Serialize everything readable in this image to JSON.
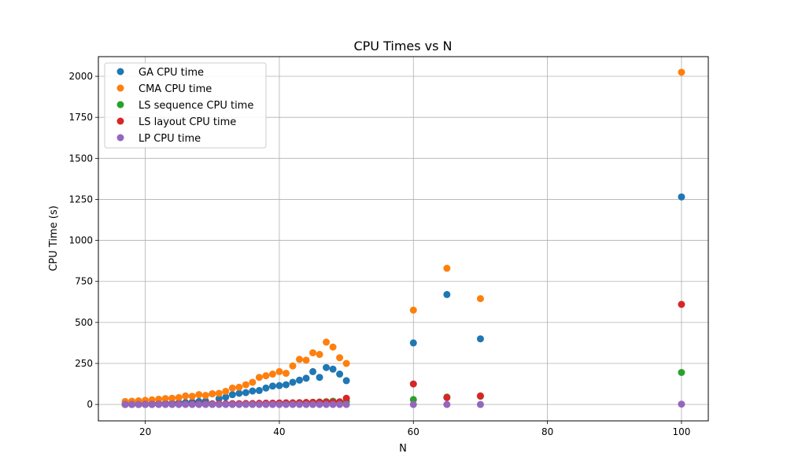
{
  "chart_data": {
    "type": "scatter",
    "title": "CPU Times vs N",
    "xlabel": "N",
    "ylabel": "CPU Time (s)",
    "xlim": [
      13,
      104
    ],
    "ylim": [
      -100,
      2120
    ],
    "xticks": [
      20,
      40,
      60,
      80,
      100
    ],
    "yticks": [
      0,
      250,
      500,
      750,
      1000,
      1250,
      1500,
      1750,
      2000
    ],
    "grid": true,
    "legend_position": "top-left",
    "series": [
      {
        "name": "GA CPU time",
        "color": "#1f77b4",
        "points": [
          [
            17,
            2
          ],
          [
            18,
            3
          ],
          [
            19,
            3
          ],
          [
            20,
            4
          ],
          [
            21,
            5
          ],
          [
            22,
            6
          ],
          [
            23,
            7
          ],
          [
            24,
            8
          ],
          [
            25,
            10
          ],
          [
            26,
            12
          ],
          [
            27,
            15
          ],
          [
            28,
            18
          ],
          [
            29,
            20
          ],
          [
            30,
            65
          ],
          [
            31,
            35
          ],
          [
            32,
            45
          ],
          [
            33,
            60
          ],
          [
            34,
            68
          ],
          [
            35,
            72
          ],
          [
            36,
            82
          ],
          [
            37,
            85
          ],
          [
            38,
            100
          ],
          [
            39,
            112
          ],
          [
            40,
            115
          ],
          [
            41,
            120
          ],
          [
            42,
            135
          ],
          [
            43,
            148
          ],
          [
            44,
            160
          ],
          [
            45,
            200
          ],
          [
            46,
            165
          ],
          [
            47,
            225
          ],
          [
            48,
            215
          ],
          [
            49,
            185
          ],
          [
            50,
            145
          ],
          [
            60,
            375
          ],
          [
            65,
            670
          ],
          [
            70,
            400
          ],
          [
            100,
            1265
          ]
        ]
      },
      {
        "name": "CMA CPU time",
        "color": "#ff7f0e",
        "points": [
          [
            17,
            18
          ],
          [
            18,
            20
          ],
          [
            19,
            22
          ],
          [
            20,
            25
          ],
          [
            21,
            28
          ],
          [
            22,
            32
          ],
          [
            23,
            36
          ],
          [
            24,
            38
          ],
          [
            25,
            42
          ],
          [
            26,
            52
          ],
          [
            27,
            50
          ],
          [
            28,
            60
          ],
          [
            29,
            55
          ],
          [
            30,
            65
          ],
          [
            31,
            68
          ],
          [
            32,
            80
          ],
          [
            33,
            100
          ],
          [
            34,
            105
          ],
          [
            35,
            120
          ],
          [
            36,
            135
          ],
          [
            37,
            165
          ],
          [
            38,
            175
          ],
          [
            39,
            185
          ],
          [
            40,
            200
          ],
          [
            41,
            190
          ],
          [
            42,
            235
          ],
          [
            43,
            275
          ],
          [
            44,
            270
          ],
          [
            45,
            315
          ],
          [
            46,
            305
          ],
          [
            47,
            380
          ],
          [
            48,
            350
          ],
          [
            49,
            285
          ],
          [
            50,
            250
          ],
          [
            60,
            575
          ],
          [
            65,
            830
          ],
          [
            70,
            645
          ],
          [
            100,
            2025
          ]
        ]
      },
      {
        "name": "LS sequence CPU time",
        "color": "#2ca02c",
        "points": [
          [
            17,
            0
          ],
          [
            18,
            0
          ],
          [
            19,
            0
          ],
          [
            20,
            0
          ],
          [
            21,
            0
          ],
          [
            22,
            1
          ],
          [
            23,
            1
          ],
          [
            24,
            1
          ],
          [
            25,
            1
          ],
          [
            26,
            2
          ],
          [
            27,
            2
          ],
          [
            28,
            2
          ],
          [
            29,
            2
          ],
          [
            30,
            3
          ],
          [
            31,
            3
          ],
          [
            32,
            3
          ],
          [
            33,
            4
          ],
          [
            34,
            4
          ],
          [
            35,
            4
          ],
          [
            36,
            5
          ],
          [
            37,
            5
          ],
          [
            38,
            6
          ],
          [
            39,
            7
          ],
          [
            40,
            8
          ],
          [
            41,
            8
          ],
          [
            42,
            9
          ],
          [
            43,
            10
          ],
          [
            44,
            12
          ],
          [
            45,
            13
          ],
          [
            46,
            15
          ],
          [
            47,
            17
          ],
          [
            48,
            20
          ],
          [
            49,
            15
          ],
          [
            50,
            18
          ],
          [
            60,
            30
          ],
          [
            65,
            45
          ],
          [
            70,
            50
          ],
          [
            100,
            195
          ]
        ]
      },
      {
        "name": "LS layout CPU time",
        "color": "#d62728",
        "points": [
          [
            17,
            0
          ],
          [
            18,
            0
          ],
          [
            19,
            0
          ],
          [
            20,
            1
          ],
          [
            21,
            1
          ],
          [
            22,
            1
          ],
          [
            23,
            1
          ],
          [
            24,
            2
          ],
          [
            25,
            2
          ],
          [
            26,
            2
          ],
          [
            27,
            3
          ],
          [
            28,
            3
          ],
          [
            29,
            3
          ],
          [
            30,
            4
          ],
          [
            31,
            4
          ],
          [
            32,
            4
          ],
          [
            33,
            5
          ],
          [
            34,
            5
          ],
          [
            35,
            6
          ],
          [
            36,
            6
          ],
          [
            37,
            7
          ],
          [
            38,
            8
          ],
          [
            39,
            8
          ],
          [
            40,
            9
          ],
          [
            41,
            10
          ],
          [
            42,
            10
          ],
          [
            43,
            11
          ],
          [
            44,
            12
          ],
          [
            45,
            13
          ],
          [
            46,
            14
          ],
          [
            47,
            15
          ],
          [
            48,
            14
          ],
          [
            49,
            16
          ],
          [
            50,
            38
          ],
          [
            60,
            125
          ],
          [
            65,
            42
          ],
          [
            70,
            52
          ],
          [
            100,
            610
          ]
        ]
      },
      {
        "name": "LP CPU time",
        "color": "#9467bd",
        "points": [
          [
            17,
            0
          ],
          [
            18,
            0
          ],
          [
            19,
            0
          ],
          [
            20,
            0
          ],
          [
            21,
            0
          ],
          [
            22,
            0
          ],
          [
            23,
            0
          ],
          [
            24,
            0
          ],
          [
            25,
            0
          ],
          [
            26,
            0
          ],
          [
            27,
            0
          ],
          [
            28,
            0
          ],
          [
            29,
            0
          ],
          [
            30,
            0
          ],
          [
            31,
            0
          ],
          [
            32,
            0
          ],
          [
            33,
            0
          ],
          [
            34,
            0
          ],
          [
            35,
            0
          ],
          [
            36,
            0
          ],
          [
            37,
            0
          ],
          [
            38,
            0
          ],
          [
            39,
            0
          ],
          [
            40,
            0
          ],
          [
            41,
            0
          ],
          [
            42,
            0
          ],
          [
            43,
            0
          ],
          [
            44,
            0
          ],
          [
            45,
            0
          ],
          [
            46,
            0
          ],
          [
            47,
            0
          ],
          [
            48,
            0
          ],
          [
            49,
            0
          ],
          [
            50,
            0
          ],
          [
            60,
            0
          ],
          [
            65,
            0
          ],
          [
            70,
            0
          ],
          [
            100,
            2
          ]
        ]
      }
    ]
  }
}
